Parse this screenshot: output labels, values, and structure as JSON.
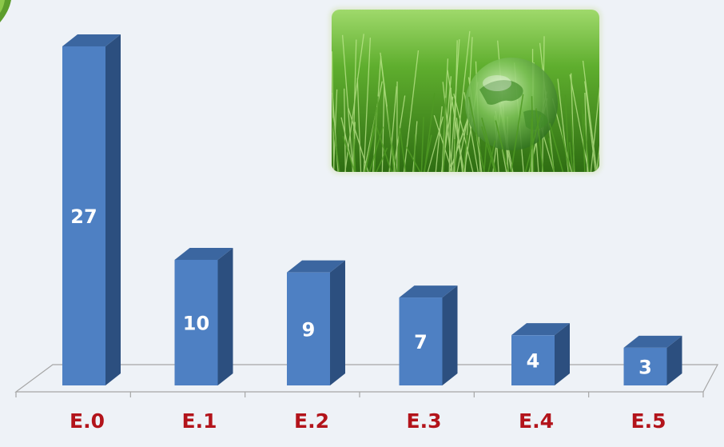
{
  "chart_data": {
    "type": "bar",
    "style": "3d-column",
    "categories": [
      "E.0",
      "E.1",
      "E.2",
      "E.3",
      "E.4",
      "E.5"
    ],
    "values": [
      27,
      10,
      9,
      7,
      4,
      3
    ],
    "title": "",
    "xlabel": "",
    "ylabel": "",
    "ylim": [
      0,
      27
    ],
    "grid": false,
    "legend": "none",
    "data_labels": true
  },
  "colors": {
    "background": "#eef2f7",
    "bar_front": "#4e80c3",
    "bar_side": "#2c4f7f",
    "bar_top": "#3b66a0",
    "data_label": "#ffffff",
    "category_label": "#b3141b",
    "axis_floor": "#a6a6a6"
  },
  "decorations": {
    "photo": "globe-in-grass-image",
    "corner": "leaf-corner-icon"
  }
}
